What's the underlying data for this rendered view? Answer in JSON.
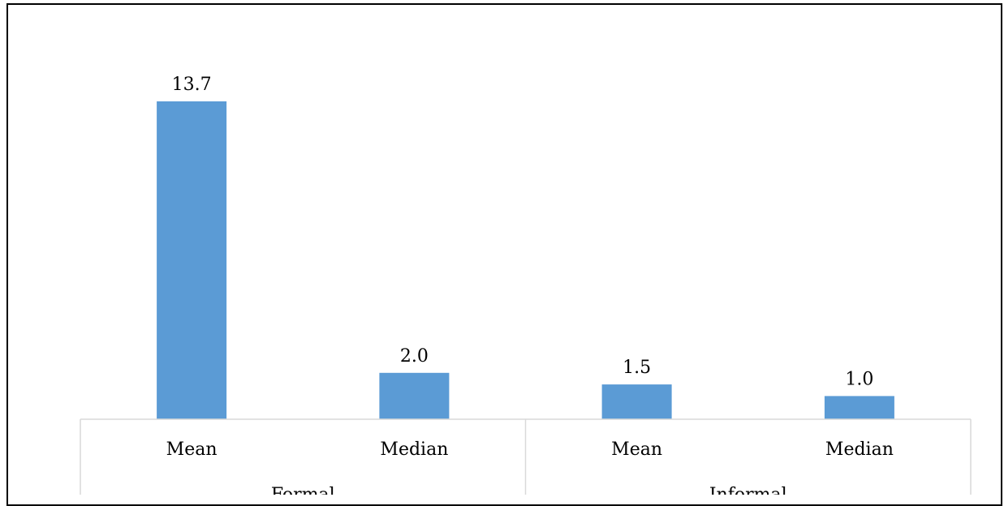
{
  "chart_data": {
    "type": "bar",
    "title": "",
    "xlabel": "",
    "ylabel": "",
    "groups": [
      "Formal",
      "Informal"
    ],
    "categories": [
      "Mean",
      "Median",
      "Mean",
      "Median"
    ],
    "category_groups": [
      0,
      0,
      1,
      1
    ],
    "values": [
      13.7,
      2.0,
      1.5,
      1.0
    ],
    "value_labels": [
      "13.7",
      "2.0",
      "1.5",
      "1.0"
    ],
    "ylim": [
      0,
      14.5
    ],
    "grid": false,
    "legend": "none",
    "bar_color": "#5B9BD5"
  }
}
